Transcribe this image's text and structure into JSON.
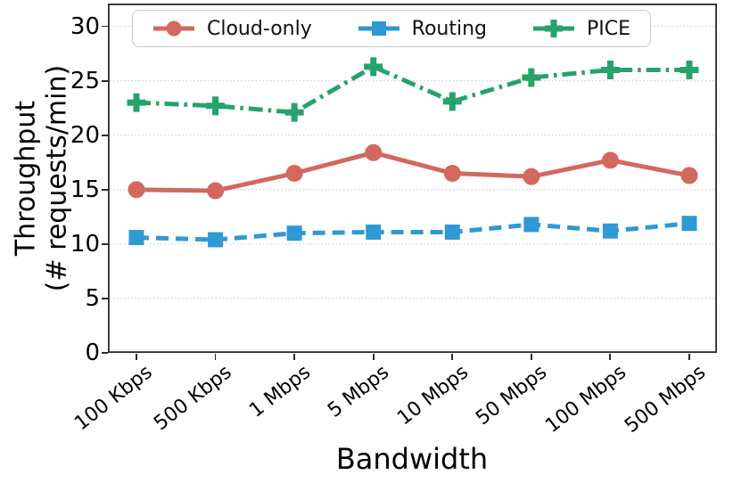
{
  "chart_data": {
    "type": "line",
    "title": "",
    "xlabel": "Bandwidth",
    "ylabel": "Throughput (# requests/min)",
    "ylabel_line1": "Throughput",
    "ylabel_line2": "(# requests/min)",
    "categories": [
      "100 Kbps",
      "500 Kbps",
      "1 Mbps",
      "5 Mbps",
      "10 Mbps",
      "50 Mbps",
      "100 Mbps",
      "500 Mbps"
    ],
    "yticks": [
      0,
      5,
      10,
      15,
      20,
      25,
      30
    ],
    "ylim": [
      0,
      32.1
    ],
    "grid": "horizontal dotted",
    "legend_position": "upper center inside, horizontal",
    "series": [
      {
        "name": "Cloud-only",
        "color": "#d3685d",
        "marker": "circle",
        "line_style": "solid",
        "values": [
          15.0,
          14.9,
          16.5,
          18.4,
          16.5,
          16.2,
          17.7,
          16.3
        ]
      },
      {
        "name": "Routing",
        "color": "#2f99d5",
        "marker": "square",
        "line_style": "dashed",
        "values": [
          10.6,
          10.4,
          11.0,
          11.1,
          11.1,
          11.8,
          11.2,
          11.9
        ]
      },
      {
        "name": "PICE",
        "color": "#27a269",
        "marker": "plus",
        "line_style": "dashdot",
        "values": [
          23.0,
          22.7,
          22.1,
          26.3,
          23.1,
          25.3,
          26.0,
          26.0
        ]
      }
    ],
    "axis_color": "#2b2b2b",
    "grid_color": "#c9c9c9"
  }
}
